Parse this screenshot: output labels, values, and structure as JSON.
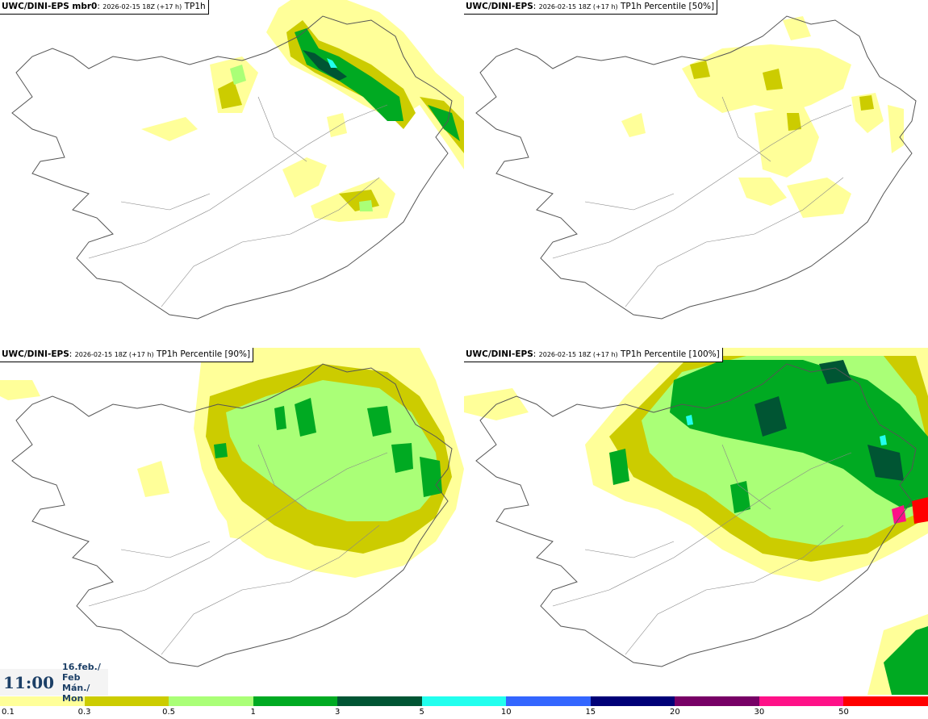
{
  "panels": [
    {
      "source": "UWC/DINI-EPS mbr0",
      "run": "2026-02-15 18Z (+17 h)",
      "field": "TP1h"
    },
    {
      "source": "UWC/DINI-EPS",
      "run": "2026-02-15 18Z (+17 h)",
      "field": "TP1h Percentile [50%]"
    },
    {
      "source": "UWC/DINI-EPS",
      "run": "2026-02-15 18Z (+17 h)",
      "field": "TP1h Percentile [90%]"
    },
    {
      "source": "UWC/DINI-EPS",
      "run": "2026-02-15 18Z (+17 h)",
      "field": "TP1h Percentile [100%]"
    }
  ],
  "time": {
    "hour": "11:00",
    "date": "16.feb./ Feb",
    "weekday": "Mán./ Mon"
  },
  "legend": {
    "colors": [
      "#ffff99",
      "#cccc00",
      "#aaff77",
      "#00aa22",
      "#005533",
      "#22ffee",
      "#3366ff",
      "#000077",
      "#770066",
      "#ff1188",
      "#ff0000"
    ],
    "ticks": [
      "0.1",
      "0.3",
      "0.5",
      "1",
      "3",
      "5",
      "10",
      "15",
      "20",
      "30",
      "50"
    ]
  },
  "map": {
    "region": "Iceland",
    "coastline_color": "#555555",
    "land_color": "#ffffff"
  }
}
